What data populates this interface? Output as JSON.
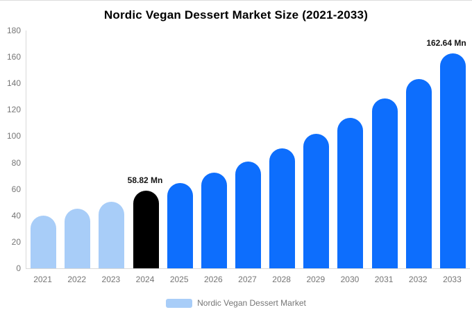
{
  "chart_data": {
    "type": "bar",
    "title": "Nordic Vegan Dessert Market Size (2021-2033)",
    "categories": [
      "2021",
      "2022",
      "2023",
      "2024",
      "2025",
      "2026",
      "2027",
      "2028",
      "2029",
      "2030",
      "2031",
      "2032",
      "2033"
    ],
    "values": [
      40,
      45,
      50.5,
      58.82,
      64.5,
      72.5,
      81,
      91,
      102,
      114,
      128.5,
      143.5,
      162.64
    ],
    "unit": "Mn",
    "bar_colors": [
      "#a8cdf8",
      "#a8cdf8",
      "#a8cdf8",
      "#000000",
      "#0d6efd",
      "#0d6efd",
      "#0d6efd",
      "#0d6efd",
      "#0d6efd",
      "#0d6efd",
      "#0d6efd",
      "#0d6efd",
      "#0d6efd"
    ],
    "annotations": [
      {
        "index": 3,
        "text": "58.82 Mn"
      },
      {
        "index": 12,
        "text": "162.64 Mn"
      }
    ],
    "xlabel": "",
    "ylabel": "",
    "ylim": [
      0,
      180
    ],
    "ytick_step": 20,
    "grid": false,
    "legend_position": "bottom"
  },
  "legend": {
    "label": "Nordic Vegan Dessert Market",
    "swatch_color": "#a8cdf8"
  },
  "colors": {
    "light_blue": "#a8cdf8",
    "blue": "#0d6efd",
    "black": "#000000",
    "axis_line": "#d9d9d9",
    "tick_text": "#757575"
  }
}
